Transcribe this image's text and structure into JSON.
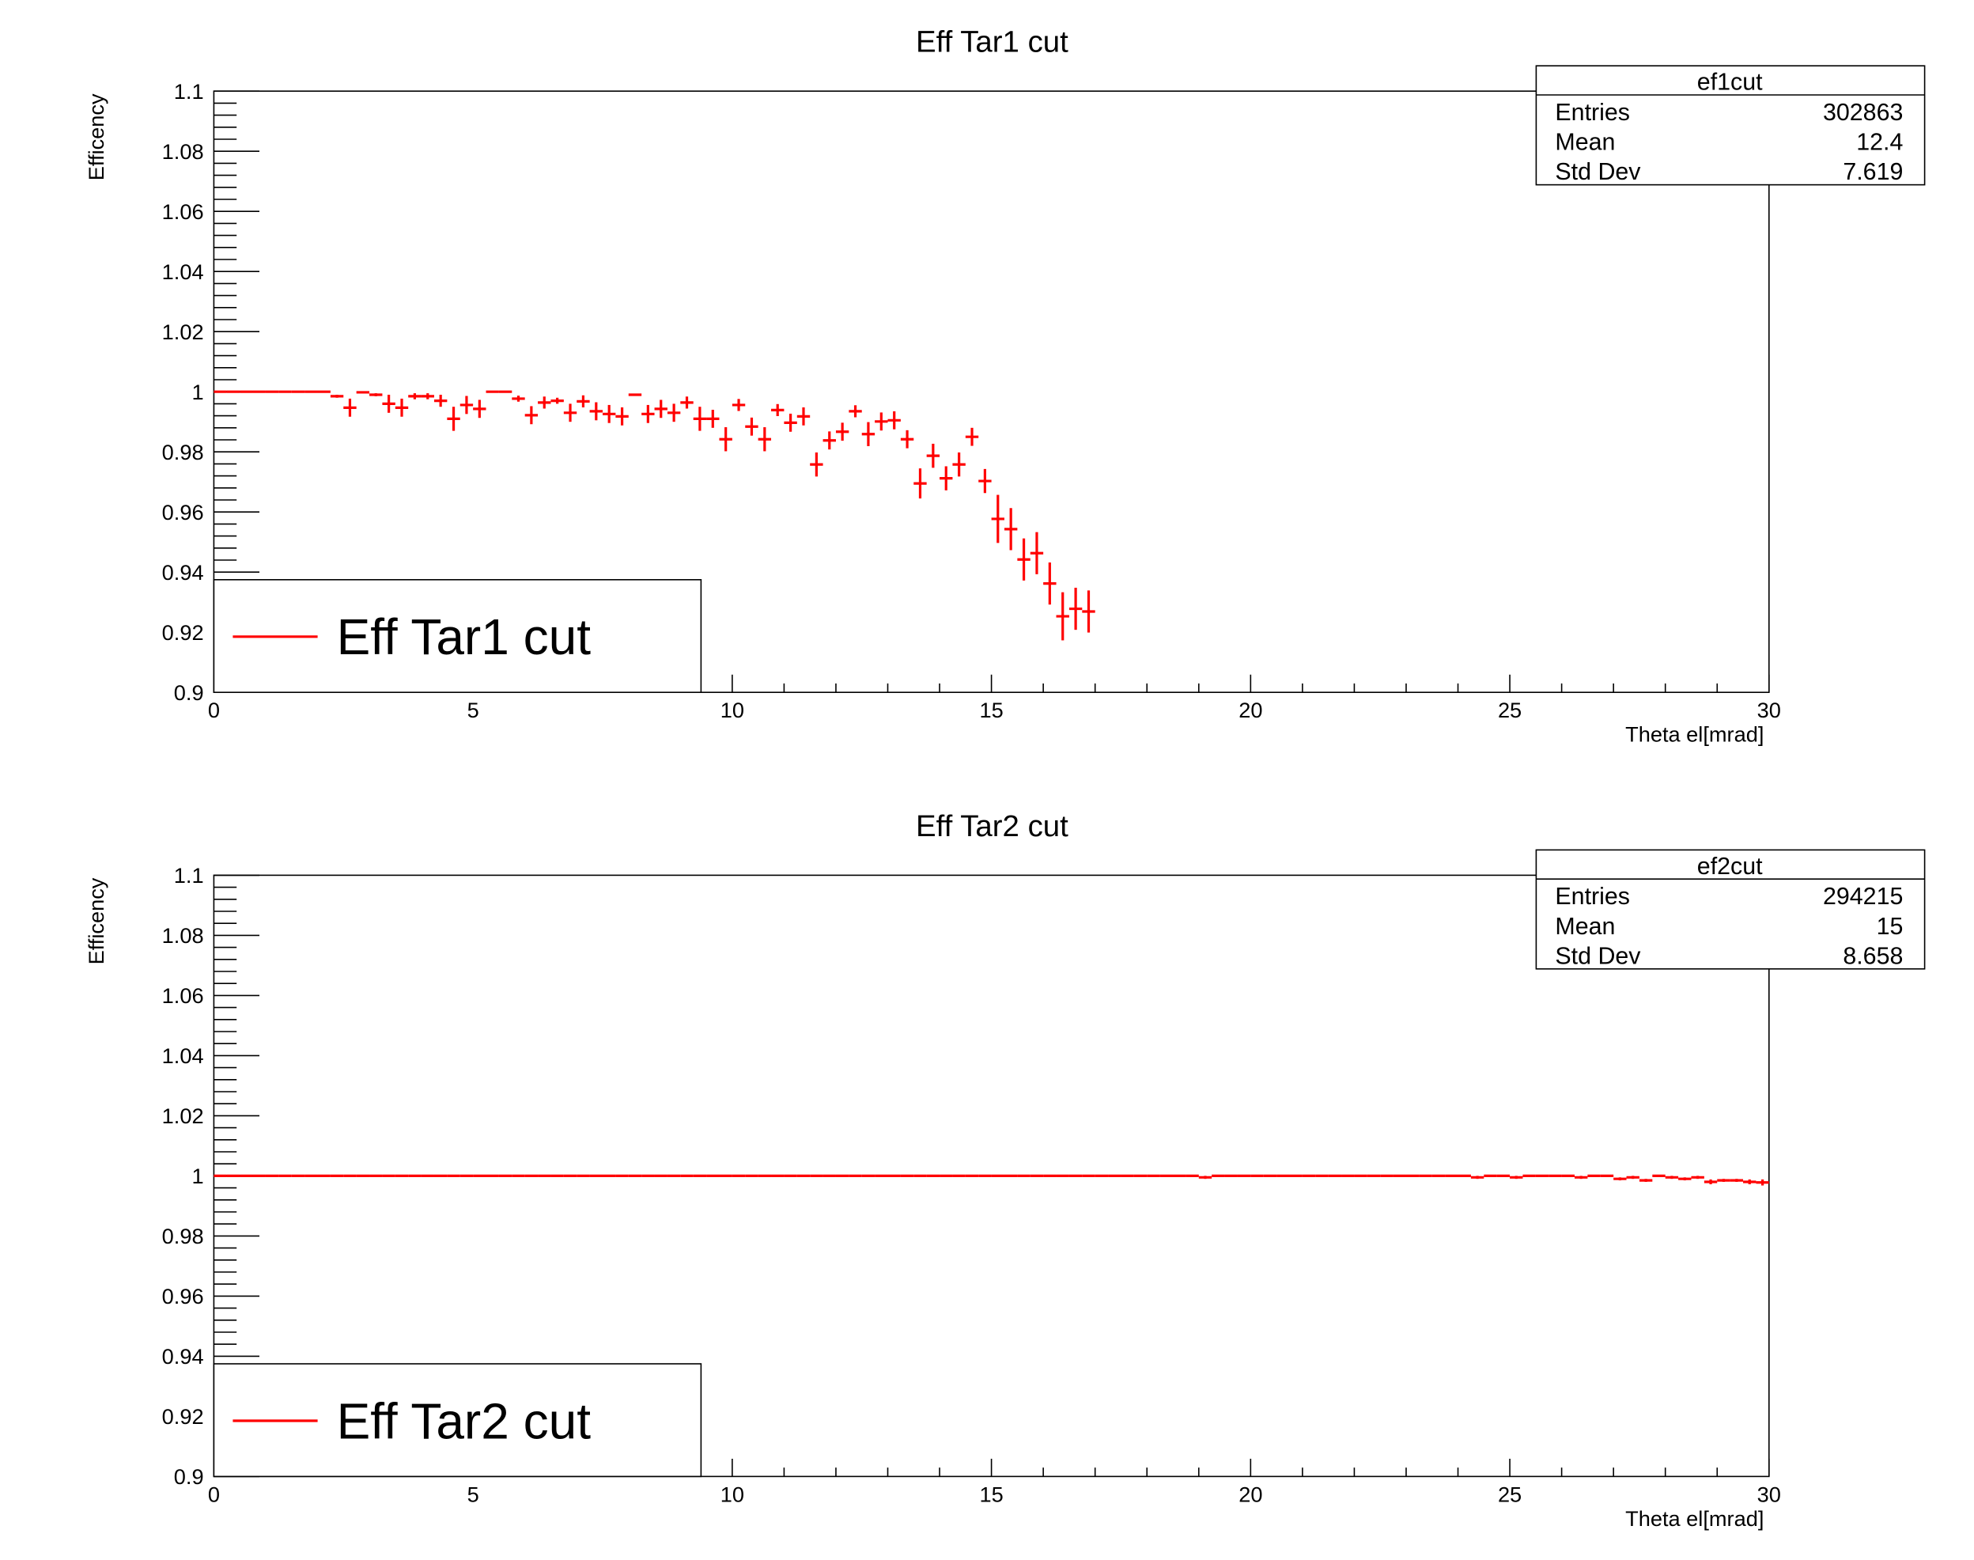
{
  "chart_data": [
    {
      "type": "histogram",
      "title": "Eff Tar1 cut",
      "x_label": "Theta el[mrad]",
      "y_label": "Efficency",
      "color": "#ff0000",
      "legend": {
        "label": "Eff Tar1 cut",
        "position": "bottom-left"
      },
      "stats": {
        "title": "ef1cut",
        "rows": [
          {
            "label": "Entries",
            "value": 302863
          },
          {
            "label": "Mean",
            "value": 12.4
          },
          {
            "label": "Std Dev",
            "value": 7.619
          }
        ]
      },
      "xlim": [
        0,
        30
      ],
      "xticks": [
        0,
        5,
        10,
        15,
        20,
        25,
        30
      ],
      "ylim": [
        0.9,
        1.1
      ],
      "yticks": [
        0.9,
        0.92,
        0.94,
        0.96,
        0.98,
        1,
        1.02,
        1.04,
        1.06,
        1.08,
        1.1
      ],
      "values": [
        1,
        1,
        1,
        1,
        1,
        1,
        1,
        1,
        1,
        0.9985,
        0.9947,
        0.9998,
        0.999,
        0.996,
        0.9947,
        0.9985,
        0.9985,
        0.997,
        0.991,
        0.9956,
        0.9943,
        1,
        1,
        0.9977,
        0.9922,
        0.9964,
        0.997,
        0.993,
        0.9968,
        0.9935,
        0.9926,
        0.9918,
        0.999,
        0.9926,
        0.9943,
        0.993,
        0.9964,
        0.991,
        0.991,
        0.9842,
        0.9956,
        0.9884,
        0.9842,
        0.9939,
        0.9897,
        0.9918,
        0.9758,
        0.9838,
        0.9867,
        0.9935,
        0.9859,
        0.9901,
        0.9905,
        0.9842,
        0.9695,
        0.9787,
        0.9712,
        0.9758,
        0.985,
        0.9703,
        0.9577,
        0.9543,
        0.9442,
        0.9463,
        0.9362,
        0.9253,
        0.9278,
        0.9269,
        null,
        null,
        null,
        null,
        null,
        null,
        null,
        null,
        null,
        null,
        null,
        null,
        null,
        null,
        null,
        null,
        null,
        null,
        null,
        null,
        null,
        null,
        null,
        null,
        null,
        null,
        null,
        null,
        null,
        null,
        null,
        null,
        null,
        null,
        null,
        null,
        null,
        null,
        null,
        null,
        null,
        null,
        null,
        null,
        null,
        null,
        null,
        null,
        null,
        null,
        null,
        null
      ],
      "errors": [
        0,
        0,
        0,
        0,
        0,
        0,
        0,
        0,
        0,
        0.0005,
        0.003,
        0,
        0.0005,
        0.003,
        0.003,
        0.001,
        0.001,
        0.002,
        0.004,
        0.003,
        0.003,
        0,
        0,
        0.001,
        0.003,
        0.002,
        0.001,
        0.003,
        0.002,
        0.003,
        0.003,
        0.003,
        0,
        0.003,
        0.003,
        0.003,
        0.002,
        0.004,
        0.003,
        0.004,
        0.002,
        0.003,
        0.004,
        0.002,
        0.003,
        0.003,
        0.004,
        0.003,
        0.003,
        0.002,
        0.004,
        0.003,
        0.003,
        0.003,
        0.005,
        0.004,
        0.004,
        0.004,
        0.003,
        0.004,
        0.008,
        0.007,
        0.007,
        0.007,
        0.007,
        0.008,
        0.007,
        0.007,
        null,
        null,
        null,
        null,
        null,
        null,
        null,
        null,
        null,
        null,
        null,
        null,
        null,
        null,
        null,
        null,
        null,
        null,
        null,
        null,
        null,
        null,
        null,
        null,
        null,
        null,
        null,
        null,
        null,
        null,
        null,
        null,
        null,
        null,
        null,
        null,
        null,
        null,
        null,
        null,
        null,
        null,
        null,
        null,
        null,
        null,
        null,
        null,
        null,
        null,
        null,
        null
      ]
    },
    {
      "type": "histogram",
      "title": "Eff Tar2 cut",
      "x_label": "Theta el[mrad]",
      "y_label": "Efficency",
      "color": "#ff0000",
      "legend": {
        "label": "Eff Tar2 cut",
        "position": "bottom-left"
      },
      "stats": {
        "title": "ef2cut",
        "rows": [
          {
            "label": "Entries",
            "value": 294215
          },
          {
            "label": "Mean",
            "value": 15
          },
          {
            "label": "Std Dev",
            "value": 8.658
          }
        ]
      },
      "xlim": [
        0,
        30
      ],
      "xticks": [
        0,
        5,
        10,
        15,
        20,
        25,
        30
      ],
      "ylim": [
        0.9,
        1.1
      ],
      "yticks": [
        0.9,
        0.92,
        0.94,
        0.96,
        0.98,
        1,
        1.02,
        1.04,
        1.06,
        1.08,
        1.1
      ],
      "values": [
        1,
        1,
        1,
        1,
        1,
        1,
        1,
        1,
        1,
        1,
        1,
        1,
        1,
        1,
        1,
        1,
        1,
        1,
        1,
        1,
        1,
        1,
        1,
        1,
        1,
        1,
        1,
        1,
        1,
        1,
        1,
        1,
        1,
        1,
        1,
        1,
        1,
        1,
        1,
        1,
        1,
        1,
        1,
        1,
        1,
        1,
        1,
        1,
        1,
        1,
        1,
        1,
        1,
        1,
        1,
        1,
        1,
        1,
        1,
        1,
        1,
        1,
        1,
        1,
        1,
        1,
        1,
        1,
        1,
        1,
        1,
        1,
        1,
        1,
        1,
        1,
        0.9995,
        1,
        1,
        1,
        1,
        1,
        1,
        1,
        1,
        1,
        1,
        1,
        1,
        1,
        1,
        1,
        1,
        1,
        1,
        1,
        1,
        0.9995,
        1,
        1,
        0.9995,
        1,
        1,
        1,
        1,
        0.9995,
        1,
        1,
        0.999,
        0.9995,
        0.9985,
        1,
        0.9995,
        0.999,
        0.9995,
        0.998,
        0.9985,
        0.9985,
        0.998,
        0.9978
      ],
      "errors": [
        0,
        0,
        0,
        0,
        0,
        0,
        0,
        0,
        0,
        0,
        0,
        0,
        0,
        0,
        0,
        0,
        0,
        0,
        0,
        0,
        0,
        0,
        0,
        0,
        0,
        0,
        0,
        0,
        0,
        0,
        0,
        0,
        0,
        0,
        0,
        0,
        0,
        0,
        0,
        0,
        0,
        0,
        0,
        0,
        0,
        0,
        0,
        0,
        0,
        0,
        0,
        0,
        0,
        0,
        0,
        0,
        0,
        0,
        0,
        0,
        0,
        0,
        0,
        0,
        0,
        0,
        0,
        0,
        0,
        0,
        0,
        0,
        0,
        0,
        0,
        0,
        0.0005,
        0,
        0,
        0,
        0,
        0,
        0,
        0,
        0,
        0,
        0,
        0,
        0,
        0,
        0,
        0,
        0,
        0,
        0,
        0,
        0,
        0.0005,
        0,
        0,
        0.0005,
        0,
        0,
        0,
        0,
        0.0005,
        0,
        0,
        0.0005,
        0.0005,
        0.0005,
        0,
        0.0005,
        0.0005,
        0.0005,
        0.0008,
        0.0005,
        0.0005,
        0.0008,
        0.001
      ]
    }
  ]
}
